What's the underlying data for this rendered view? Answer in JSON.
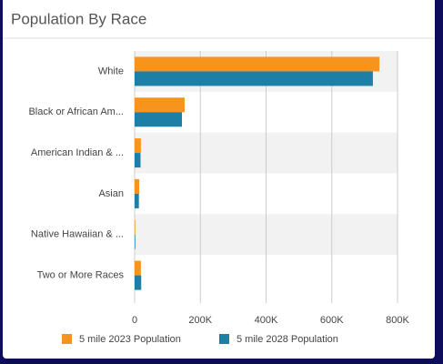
{
  "chart_data": {
    "type": "bar",
    "orientation": "horizontal",
    "title": "Population By Race",
    "categories": [
      "White",
      "Black or African Am...",
      "American Indian & ...",
      "Asian",
      "Native Hawaiian & ...",
      "Two or More Races"
    ],
    "series": [
      {
        "name": "5 mile 2023 Population",
        "color": "#f7941d",
        "values": [
          745000,
          152000,
          19000,
          14000,
          2000,
          19000
        ]
      },
      {
        "name": "5 mile 2028 Population",
        "color": "#1e7fa6",
        "values": [
          725000,
          144000,
          18000,
          13000,
          2000,
          20000
        ]
      }
    ],
    "xlim": [
      0,
      800000
    ],
    "xticks": [
      {
        "value": 0,
        "label": "0"
      },
      {
        "value": 200000,
        "label": "200K"
      },
      {
        "value": 400000,
        "label": "400K"
      },
      {
        "value": 600000,
        "label": "600K"
      },
      {
        "value": 800000,
        "label": "800K"
      }
    ],
    "grid": true,
    "legend": "bottom"
  }
}
